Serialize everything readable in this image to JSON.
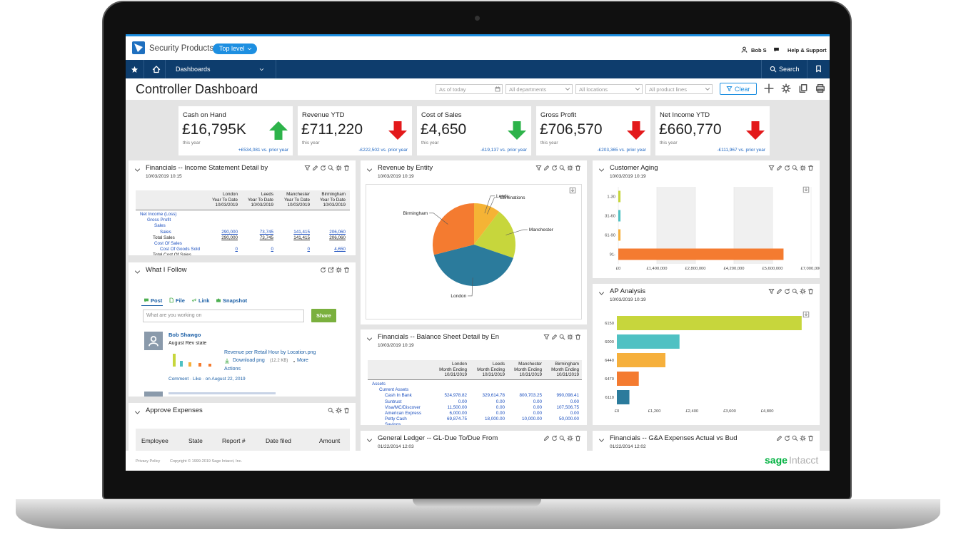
{
  "header": {
    "app": "Security Products",
    "entity": "Top level",
    "user": "Bob S",
    "help": "Help & Support"
  },
  "nav": {
    "menu": "Dashboards",
    "search": "Search"
  },
  "toolbar": {
    "title": "Controller Dashboard",
    "filters": [
      "As of today",
      "All departments",
      "All locations",
      "All product lines"
    ],
    "clear": "Clear"
  },
  "kpis": [
    {
      "label": "Cash on Hand",
      "value": "£16,795K",
      "period": "this year",
      "change": "+£534,081 vs. prior year",
      "trend": "up",
      "color": "#2db34a"
    },
    {
      "label": "Revenue YTD",
      "value": "£711,220",
      "period": "this year",
      "change": "-£222,502 vs. prior year",
      "trend": "down",
      "color": "#e3191b"
    },
    {
      "label": "Cost of Sales",
      "value": "£4,650",
      "period": "this year",
      "change": "-£19,137 vs. prior year",
      "trend": "down",
      "color": "#2db34a"
    },
    {
      "label": "Gross Profit",
      "value": "£706,570",
      "period": "this year",
      "change": "-£203,365 vs. prior year",
      "trend": "down",
      "color": "#e3191b"
    },
    {
      "label": "Net Income YTD",
      "value": "£660,770",
      "period": "this year",
      "change": "-£111,967 vs. prior year",
      "trend": "down",
      "color": "#e3191b"
    }
  ],
  "panels": {
    "income": {
      "title": "Financials -- Income Statement Detail by",
      "date": "10/03/2019 10:15",
      "columns": [
        [
          "London",
          "Year To Date",
          "10/03/2019"
        ],
        [
          "Leeds",
          "Year To Date",
          "10/03/2019"
        ],
        [
          "Manchester",
          "Year To Date",
          "10/03/2019"
        ],
        [
          "Birmingham",
          "Year To Date",
          "10/03/2019"
        ]
      ],
      "rows": [
        [
          "Net Income (Loss)"
        ],
        [
          "Gross Profit"
        ],
        [
          "Sales"
        ],
        [
          "Sales",
          "290,000",
          "73,745",
          "141,415",
          "206,060"
        ],
        [
          "Total Sales",
          "290,000",
          "73,745",
          "141,415",
          "206,060"
        ],
        [
          "Cost Of Sales"
        ],
        [
          "Cost Of Goods Sold",
          "0",
          "0",
          "0",
          "4,650"
        ],
        [
          "Total Cost Of Sales"
        ]
      ]
    },
    "follow": {
      "title": "What I Follow",
      "actions": [
        "Post",
        "File",
        "Link",
        "Snapshot"
      ],
      "placeholder": "What are you working on",
      "share": "Share",
      "post": {
        "author": "Bob Shawgo",
        "text": "August Rev state",
        "attachment": "Revenue per Retail Hour by Location.png",
        "download": "Download png",
        "size": "(12.2 KB)",
        "more": "More",
        "actions": "Actions",
        "footer": "Comment · Like · on August 22, 2019"
      }
    },
    "expenses": {
      "title": "Approve Expenses",
      "columns": [
        "Employee",
        "State",
        "Report #",
        "Date filed",
        "Amount"
      ]
    },
    "revenue": {
      "title": "Revenue by Entity",
      "date": "10/03/2019 10:19",
      "chart": {
        "type": "pie",
        "categories": [
          "Leeds",
          "Eliminations",
          "Manchester",
          "London",
          "Birmingham"
        ],
        "values": [
          73745,
          0,
          141415,
          290000,
          206060
        ],
        "colors": [
          "#f5b335",
          "#8fbf3f",
          "#c7d63c",
          "#2b7b9c",
          "#f47b30"
        ]
      }
    },
    "balance": {
      "title": "Financials -- Balance Sheet Detail by En",
      "date": "10/03/2019 10:19",
      "columns": [
        [
          "London",
          "Month Ending",
          "10/31/2019"
        ],
        [
          "Leeds",
          "Month Ending",
          "10/31/2019"
        ],
        [
          "Manchester",
          "Month Ending",
          "10/31/2019"
        ],
        [
          "Birmingham",
          "Month Ending",
          "10/31/2019"
        ]
      ],
      "rows": [
        [
          "Assets"
        ],
        [
          "Current Assets"
        ],
        [
          "Cash In Bank",
          "524,978.82",
          "329,614.78",
          "800,703.25",
          "990,098.41"
        ],
        [
          "Suntrust",
          "0.00",
          "0.00",
          "0.00",
          "0.00"
        ],
        [
          "Visa/MC/Discover",
          "11,500.00",
          "0.00",
          "0.00",
          "107,506.75"
        ],
        [
          "American Express",
          "6,000.00",
          "0.00",
          "0.00",
          "0.00"
        ],
        [
          "Petty Cash",
          "69,874.75",
          "18,000.00",
          "10,000.00",
          "50,000.00"
        ],
        [
          "Savings"
        ]
      ]
    },
    "ledger": {
      "title": "General Ledger -- GL-Due To/Due From",
      "date": "01/22/2014 12:03"
    },
    "aging": {
      "title": "Customer Aging",
      "date": "10/03/2019 10:19",
      "chart": {
        "type": "bar",
        "orientation": "horizontal",
        "categories": [
          "1-30",
          "31-60",
          "61-90",
          "91-"
        ],
        "values": [
          80000,
          80000,
          80000,
          6000000
        ],
        "colors": [
          "#c7d63c",
          "#4fc1c3",
          "#f6b03c",
          "#f47b30"
        ],
        "xlim": [
          0,
          7000000
        ],
        "xticks": [
          {
            "value": 0,
            "label": "£0"
          },
          {
            "value": 1400000,
            "label": "£1,400,000"
          },
          {
            "value": 2800000,
            "label": "£2,800,000"
          },
          {
            "value": 4200000,
            "label": "£4,200,000"
          },
          {
            "value": 5600000,
            "label": "£5,600,000"
          },
          {
            "value": 7000000,
            "label": "£7,000,000"
          }
        ],
        "grid": true
      }
    },
    "ap": {
      "title": "AP Analysis",
      "date": "10/03/2019 10:19",
      "chart": {
        "type": "bar",
        "orientation": "horizontal",
        "categories": [
          "6150",
          "6000",
          "6440",
          "6470",
          "6110"
        ],
        "values": [
          5900,
          2000,
          1550,
          700,
          400
        ],
        "colors": [
          "#c7d63c",
          "#4fc1c3",
          "#f6b03c",
          "#f47b30",
          "#2b7b9c"
        ],
        "xlim": [
          0,
          6200
        ],
        "xticks": [
          {
            "value": 0,
            "label": "£0"
          },
          {
            "value": 1200,
            "label": "£1,200"
          },
          {
            "value": 2400,
            "label": "£2,400"
          },
          {
            "value": 3600,
            "label": "£3,600"
          },
          {
            "value": 4800,
            "label": "£4,800"
          }
        ],
        "grid": false
      }
    },
    "ga": {
      "title": "Financials -- G&A Expenses Actual vs Bud",
      "date": "01/22/2014 12:02"
    }
  },
  "footer": {
    "privacy": "Privacy Policy",
    "copyright": "Copyright © 1999-2019 Sage Intacct, Inc.",
    "brand": "sage",
    "product": "Intacct"
  }
}
